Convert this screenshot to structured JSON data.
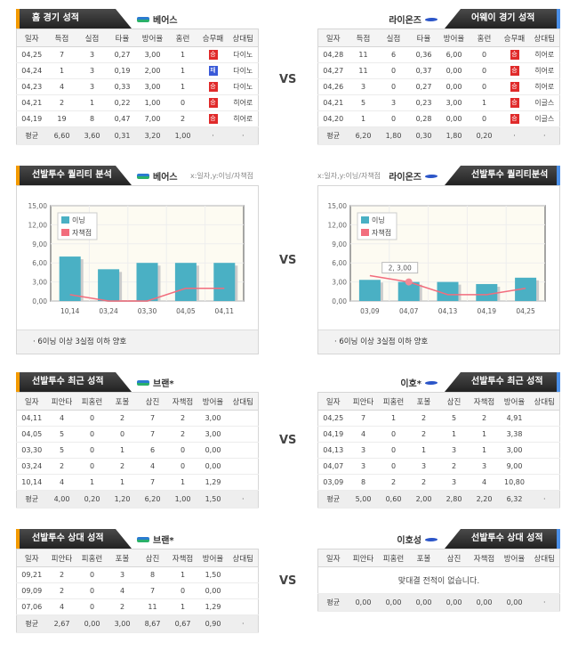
{
  "vs_label": "VS",
  "home_games": {
    "title": "홈 경기 성적",
    "team": "베어스",
    "columns": [
      "일자",
      "득점",
      "실점",
      "타율",
      "방어율",
      "홈런",
      "승무패",
      "상대팀"
    ],
    "rows": [
      [
        "04,25",
        "7",
        "3",
        "0,27",
        "3,00",
        "1",
        "승",
        "다이노"
      ],
      [
        "04,24",
        "1",
        "3",
        "0,19",
        "2,00",
        "1",
        "패",
        "다이노"
      ],
      [
        "04,23",
        "4",
        "3",
        "0,33",
        "3,00",
        "1",
        "승",
        "다이노"
      ],
      [
        "04,21",
        "2",
        "1",
        "0,22",
        "1,00",
        "0",
        "승",
        "히어로"
      ],
      [
        "04,19",
        "19",
        "8",
        "0,47",
        "7,00",
        "2",
        "승",
        "히어로"
      ]
    ],
    "avg": [
      "평균",
      "6,60",
      "3,60",
      "0,31",
      "3,20",
      "1,00",
      "·",
      "·"
    ]
  },
  "away_games": {
    "title": "어웨이 경기 성적",
    "team": "라이온즈",
    "columns": [
      "일자",
      "득점",
      "실점",
      "타율",
      "방어율",
      "홈런",
      "승무패",
      "상대팀"
    ],
    "rows": [
      [
        "04,28",
        "11",
        "6",
        "0,36",
        "6,00",
        "0",
        "승",
        "히어로"
      ],
      [
        "04,27",
        "11",
        "0",
        "0,37",
        "0,00",
        "0",
        "승",
        "히어로"
      ],
      [
        "04,26",
        "3",
        "0",
        "0,27",
        "0,00",
        "0",
        "승",
        "히어로"
      ],
      [
        "04,21",
        "5",
        "3",
        "0,23",
        "3,00",
        "1",
        "승",
        "이글스"
      ],
      [
        "04,20",
        "1",
        "0",
        "0,28",
        "0,00",
        "0",
        "승",
        "이글스"
      ]
    ],
    "avg": [
      "평균",
      "6,20",
      "1,80",
      "0,30",
      "1,80",
      "0,20",
      "·",
      "·"
    ]
  },
  "quality_left": {
    "title": "선발투수 퀄리티 분석",
    "team": "베어스",
    "hint": "x:일자,y:이닝/자책점",
    "note": "· 6이닝 이상 3실점 이하 양호"
  },
  "quality_right": {
    "title": "선발투수 퀄리티분석",
    "team": "라이온즈",
    "hint": "x:일자,y:이닝/자책점",
    "note": "· 6이닝 이상 3실점 이하 양호",
    "tooltip": "2, 3,00"
  },
  "chart_data": [
    {
      "type": "bar",
      "categories": [
        "10,14",
        "03,24",
        "03,30",
        "04,05",
        "04,11"
      ],
      "series": [
        {
          "name": "이닝",
          "type": "bar",
          "values": [
            7,
            5,
            6,
            6,
            6
          ]
        },
        {
          "name": "자책점",
          "type": "line",
          "values": [
            1,
            0,
            0,
            2,
            2
          ]
        }
      ],
      "ylim": [
        0,
        15
      ],
      "yticks": [
        "0,00",
        "3,00",
        "6,00",
        "9,00",
        "12,00",
        "15,00"
      ],
      "legend": "top-left",
      "colors": {
        "bar": "#4ab0c4",
        "line": "#f26d7d"
      }
    },
    {
      "type": "bar",
      "categories": [
        "03,09",
        "04,07",
        "04,13",
        "04,19",
        "04,25"
      ],
      "series": [
        {
          "name": "이닝",
          "type": "bar",
          "values": [
            3.33,
            3,
            3,
            2.67,
            3.67
          ]
        },
        {
          "name": "자책점",
          "type": "line",
          "values": [
            4,
            3,
            1,
            1,
            2
          ]
        }
      ],
      "ylim": [
        0,
        15
      ],
      "yticks": [
        "0,00",
        "3,00",
        "6,00",
        "9,00",
        "12,00",
        "15,00"
      ],
      "legend": "top-left",
      "colors": {
        "bar": "#4ab0c4",
        "line": "#f26d7d"
      }
    }
  ],
  "recent_left": {
    "title": "선발투수 최근 성적",
    "team": "브랜*",
    "columns": [
      "일자",
      "피안타",
      "피홈런",
      "포볼",
      "삼진",
      "자책점",
      "방어율",
      "상대팀"
    ],
    "rows": [
      [
        "04,11",
        "4",
        "0",
        "2",
        "7",
        "2",
        "3,00",
        ""
      ],
      [
        "04,05",
        "5",
        "0",
        "0",
        "7",
        "2",
        "3,00",
        ""
      ],
      [
        "03,30",
        "5",
        "0",
        "1",
        "6",
        "0",
        "0,00",
        ""
      ],
      [
        "03,24",
        "2",
        "0",
        "2",
        "4",
        "0",
        "0,00",
        ""
      ],
      [
        "10,14",
        "4",
        "1",
        "1",
        "7",
        "1",
        "1,29",
        ""
      ]
    ],
    "avg": [
      "평균",
      "4,00",
      "0,20",
      "1,20",
      "6,20",
      "1,00",
      "1,50",
      "·"
    ]
  },
  "recent_right": {
    "title": "선발투수 최근 성적",
    "team": "이호*",
    "columns": [
      "일자",
      "피안타",
      "피홈런",
      "포볼",
      "삼진",
      "자책점",
      "방어율",
      "상대팀"
    ],
    "rows": [
      [
        "04,25",
        "7",
        "1",
        "2",
        "5",
        "2",
        "4,91",
        ""
      ],
      [
        "04,19",
        "4",
        "0",
        "2",
        "1",
        "1",
        "3,38",
        ""
      ],
      [
        "04,13",
        "3",
        "0",
        "1",
        "3",
        "1",
        "3,00",
        ""
      ],
      [
        "04,07",
        "3",
        "0",
        "3",
        "2",
        "3",
        "9,00",
        ""
      ],
      [
        "03,09",
        "8",
        "2",
        "2",
        "3",
        "4",
        "10,80",
        ""
      ]
    ],
    "avg": [
      "평균",
      "5,00",
      "0,60",
      "2,00",
      "2,80",
      "2,20",
      "6,32",
      "·"
    ]
  },
  "vs_left": {
    "title": "선발투수 상대 성적",
    "team": "브랜*",
    "columns": [
      "일자",
      "피안타",
      "피홈런",
      "포볼",
      "삼진",
      "자책점",
      "방어율",
      "상대팀"
    ],
    "rows": [
      [
        "09,21",
        "2",
        "0",
        "3",
        "8",
        "1",
        "1,50",
        ""
      ],
      [
        "09,09",
        "2",
        "0",
        "4",
        "7",
        "0",
        "0,00",
        ""
      ],
      [
        "07,06",
        "4",
        "0",
        "2",
        "11",
        "1",
        "1,29",
        ""
      ]
    ],
    "avg": [
      "평균",
      "2,67",
      "0,00",
      "3,00",
      "8,67",
      "0,67",
      "0,90",
      "·"
    ]
  },
  "vs_right": {
    "title": "선발투수 상대 성적",
    "team": "이호성",
    "columns": [
      "일자",
      "피안타",
      "피홈런",
      "포볼",
      "삼진",
      "자책점",
      "방어율",
      "상대팀"
    ],
    "rows": [],
    "empty": "맞대결 전적이 없습니다.",
    "avg": [
      "평균",
      "0,00",
      "0,00",
      "0,00",
      "0,00",
      "0,00",
      "0,00",
      "·"
    ]
  }
}
